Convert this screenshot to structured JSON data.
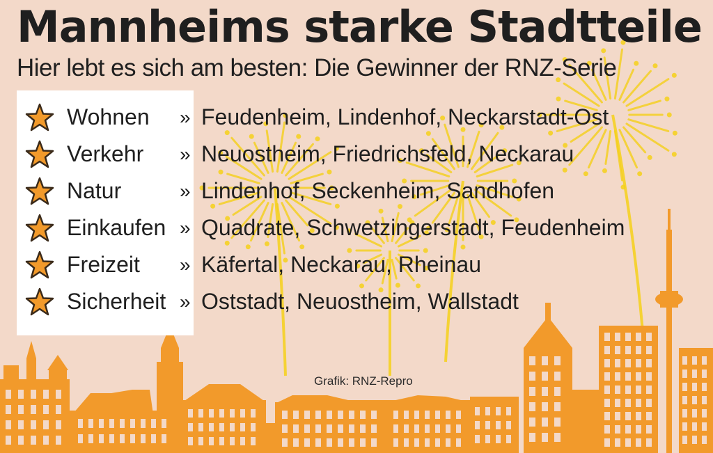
{
  "header": {
    "title": "Mannheims starke Stadtteile",
    "subtitle": "Hier lebt es sich am besten: Die Gewinner der RNZ-Serie"
  },
  "separator": "»",
  "rows": [
    {
      "category": "Wohnen",
      "winners": "Feudenheim, Lindenhof, Neckarstadt-Ost"
    },
    {
      "category": "Verkehr",
      "winners": "Neuostheim, Friedrichsfeld, Neckarau"
    },
    {
      "category": "Natur",
      "winners": "Lindenhof, Seckenheim, Sandhofen"
    },
    {
      "category": "Einkaufen",
      "winners": "Quadrate, Schwetzingerstadt, Feudenheim"
    },
    {
      "category": "Freizeit",
      "winners": "Käfertal, Neckarau, Rheinau"
    },
    {
      "category": "Sicherheit",
      "winners": "Oststadt, Neuostheim, Wallstadt"
    }
  ],
  "credit": "Grafik: RNZ-Repro",
  "colors": {
    "background": "#f3d9c9",
    "skyline": "#f29a2b",
    "star_fill": "#f29a2b",
    "fireworks": "#f5d01a",
    "text": "#1f1f1f"
  },
  "icons": {
    "bullet": "star-icon"
  }
}
